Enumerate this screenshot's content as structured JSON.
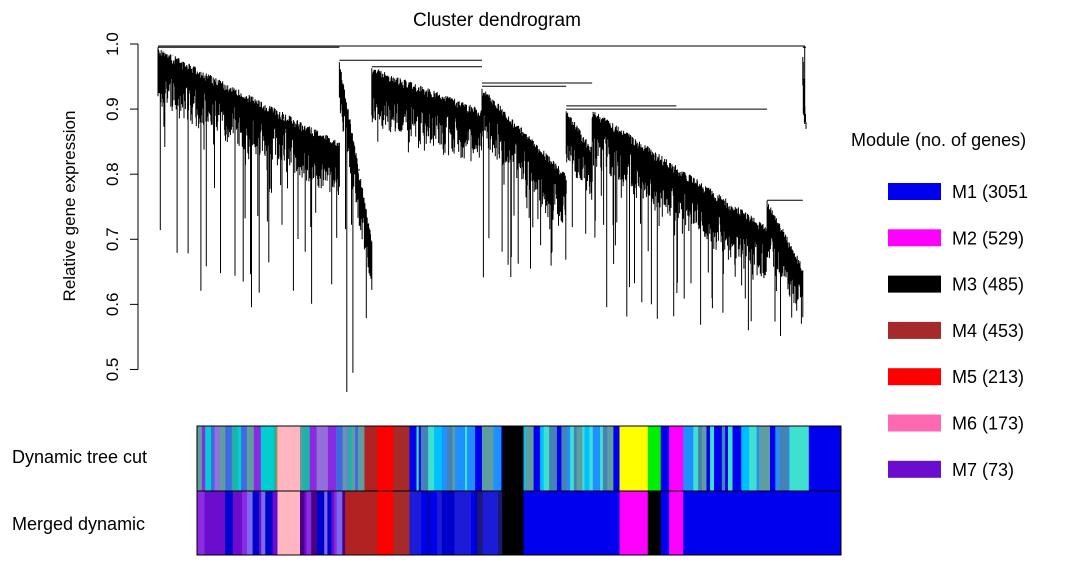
{
  "chart_data": {
    "type": "dendrogram",
    "title": "Cluster dendrogram",
    "ylabel": "Relative gene expression",
    "ylim": [
      0.45,
      1.0
    ],
    "yticks": [
      "0.5",
      "0.6",
      "0.7",
      "0.8",
      "0.9",
      "1.0"
    ],
    "rows": [
      {
        "label": "Dynamic tree cut"
      },
      {
        "label": "Merged dynamic"
      }
    ],
    "legend": {
      "title": "Module (no. of genes)",
      "position": "right",
      "items": [
        {
          "label": "M1 (3051",
          "color": "#0000EE"
        },
        {
          "label": "M2 (529)",
          "color": "#FF00FF"
        },
        {
          "label": "M3 (485)",
          "color": "#000000"
        },
        {
          "label": "M4 (453)",
          "color": "#A52A2A"
        },
        {
          "label": "M5 (213)",
          "color": "#FF0000"
        },
        {
          "label": "M6 (173)",
          "color": "#FF69B4"
        },
        {
          "label": "M7 (73)",
          "color": "#6A0DCD"
        }
      ]
    },
    "clusters": [
      {
        "from": 0.0,
        "to": 0.28,
        "top": 0.995,
        "bottom": 0.85,
        "min": 0.59
      },
      {
        "from": 0.28,
        "to": 0.33,
        "top": 0.975,
        "bottom": 0.7,
        "min": 0.45
      },
      {
        "from": 0.33,
        "to": 0.5,
        "top": 0.965,
        "bottom": 0.9,
        "min": 0.82
      },
      {
        "from": 0.5,
        "to": 0.63,
        "top": 0.935,
        "bottom": 0.8,
        "min": 0.64
      },
      {
        "from": 0.63,
        "to": 0.67,
        "top": 0.9,
        "bottom": 0.84,
        "min": 0.62
      },
      {
        "from": 0.67,
        "to": 0.94,
        "top": 0.9,
        "bottom": 0.72,
        "min": 0.56
      },
      {
        "from": 0.94,
        "to": 0.995,
        "top": 0.76,
        "bottom": 0.66,
        "min": 0.55
      },
      {
        "from": 0.995,
        "to": 1.0,
        "top": 0.995,
        "bottom": 0.88,
        "min": 0.88
      }
    ],
    "dynamic_tree_cut": [
      {
        "from": 0.0,
        "to": 0.125,
        "color": "mix"
      },
      {
        "from": 0.125,
        "to": 0.16,
        "color": "#FFB6C1"
      },
      {
        "from": 0.16,
        "to": 0.26,
        "color": "mix"
      },
      {
        "from": 0.26,
        "to": 0.28,
        "color": "#B22222"
      },
      {
        "from": 0.28,
        "to": 0.305,
        "color": "#FF0000"
      },
      {
        "from": 0.305,
        "to": 0.33,
        "color": "#A52A2A"
      },
      {
        "from": 0.33,
        "to": 0.474,
        "color": "mixBlue"
      },
      {
        "from": 0.474,
        "to": 0.507,
        "color": "#000000"
      },
      {
        "from": 0.507,
        "to": 0.656,
        "color": "mixBlue"
      },
      {
        "from": 0.656,
        "to": 0.7,
        "color": "#FFFF00"
      },
      {
        "from": 0.7,
        "to": 0.72,
        "color": "#00EE00"
      },
      {
        "from": 0.72,
        "to": 0.733,
        "color": "#0000EE"
      },
      {
        "from": 0.733,
        "to": 0.755,
        "color": "#FF00FF"
      },
      {
        "from": 0.755,
        "to": 0.92,
        "color": "mixBlue"
      },
      {
        "from": 0.92,
        "to": 0.95,
        "color": "#40E0D0"
      },
      {
        "from": 0.95,
        "to": 1.0,
        "color": "#0000EE"
      }
    ],
    "merged_dynamic": [
      {
        "from": 0.0,
        "to": 0.125,
        "color": "mixPurple"
      },
      {
        "from": 0.125,
        "to": 0.16,
        "color": "#FFB6C1"
      },
      {
        "from": 0.16,
        "to": 0.23,
        "color": "mixPurple"
      },
      {
        "from": 0.23,
        "to": 0.28,
        "color": "#B22222"
      },
      {
        "from": 0.28,
        "to": 0.305,
        "color": "#FF0000"
      },
      {
        "from": 0.305,
        "to": 0.33,
        "color": "#A52A2A"
      },
      {
        "from": 0.33,
        "to": 0.474,
        "color": "mixDeepBlue"
      },
      {
        "from": 0.474,
        "to": 0.507,
        "color": "#000000"
      },
      {
        "from": 0.507,
        "to": 0.656,
        "color": "#0000EE"
      },
      {
        "from": 0.656,
        "to": 0.7,
        "color": "#FF00FF"
      },
      {
        "from": 0.7,
        "to": 0.72,
        "color": "#000000"
      },
      {
        "from": 0.72,
        "to": 0.733,
        "color": "#0000EE"
      },
      {
        "from": 0.733,
        "to": 0.755,
        "color": "#FF00FF"
      },
      {
        "from": 0.755,
        "to": 1.0,
        "color": "#0000EE"
      }
    ]
  }
}
